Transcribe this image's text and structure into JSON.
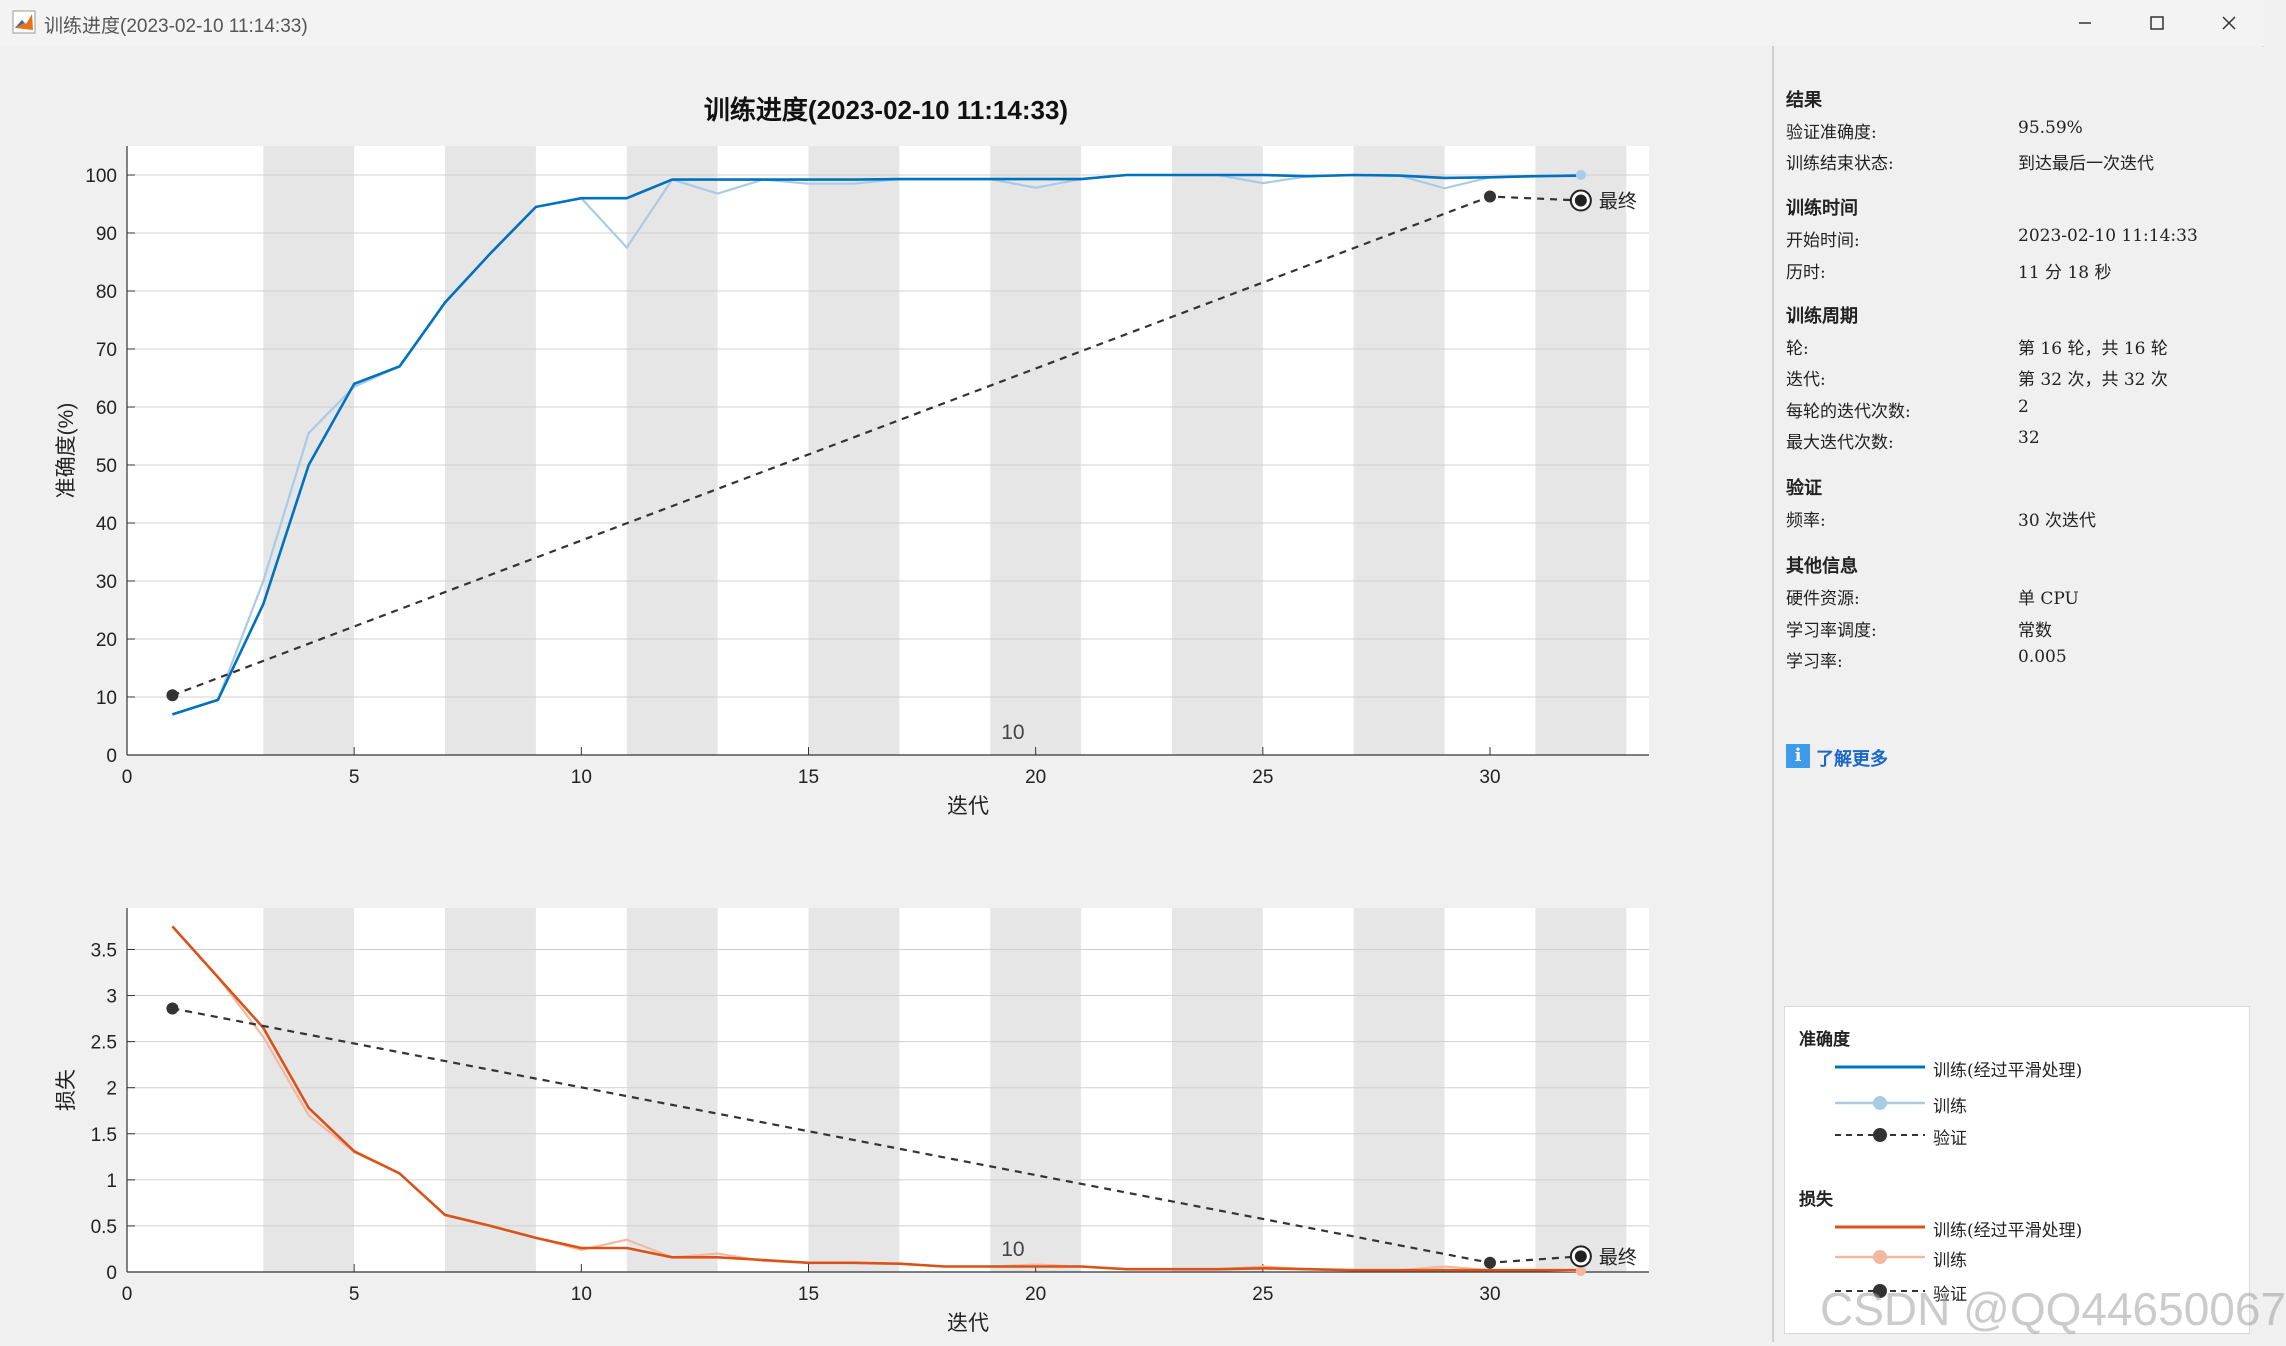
{
  "window": {
    "title": "训练进度(2023-02-10 11:14:33)",
    "controls": {
      "minimize": "minimize-icon",
      "maximize": "maximize-icon",
      "close": "close-icon"
    }
  },
  "figure": {
    "title": "训练进度(2023-02-10 11:14:33)"
  },
  "chart_data": [
    {
      "type": "line",
      "ylabel": "准确度(%)",
      "xlabel": "迭代",
      "xlim": [
        0,
        33.5
      ],
      "ylim": [
        0,
        105
      ],
      "xticks": [
        0,
        5,
        10,
        15,
        20,
        25,
        30
      ],
      "yticks": [
        0,
        10,
        20,
        30,
        40,
        50,
        60,
        70,
        80,
        90,
        100
      ],
      "epoch_marker_label": "10",
      "final_label": "最终",
      "epoch_shading": "alternating gray bands, 2 iterations per epoch",
      "series": [
        {
          "name": "训练(经过平滑处理)",
          "color": "#0072bd",
          "x": [
            1,
            2,
            3,
            4,
            5,
            6,
            7,
            8,
            9,
            10,
            11,
            12,
            13,
            14,
            15,
            16,
            17,
            18,
            19,
            20,
            21,
            22,
            23,
            24,
            25,
            26,
            27,
            28,
            29,
            30,
            31,
            32
          ],
          "values": [
            7,
            9.5,
            26,
            50,
            64,
            67,
            78,
            86.5,
            94.5,
            96,
            96,
            99.2,
            99.2,
            99.2,
            99.2,
            99.2,
            99.3,
            99.3,
            99.3,
            99.3,
            99.3,
            100,
            100,
            100,
            100,
            99.8,
            100,
            99.9,
            99.5,
            99.6,
            99.8,
            99.9
          ]
        },
        {
          "name": "训练",
          "color": "#a9cbe6",
          "x": [
            1,
            2,
            3,
            4,
            5,
            6,
            7,
            8,
            9,
            10,
            11,
            12,
            13,
            14,
            15,
            16,
            17,
            18,
            19,
            20,
            21,
            22,
            23,
            24,
            25,
            26,
            27,
            28,
            29,
            30,
            31,
            32
          ],
          "values": [
            7,
            9.5,
            30,
            55.5,
            63.5,
            67,
            78,
            86.5,
            94.5,
            96,
            87.5,
            99.2,
            96.8,
            99.2,
            98.5,
            98.5,
            99.3,
            99.3,
            99.3,
            97.8,
            99.3,
            100,
            100,
            100,
            98.6,
            99.8,
            100,
            99.9,
            97.7,
            99.6,
            99.8,
            100
          ]
        },
        {
          "name": "验证",
          "color": "#333333",
          "x": [
            1,
            30,
            32
          ],
          "values": [
            10.3,
            96.3,
            95.6
          ]
        }
      ]
    },
    {
      "type": "line",
      "ylabel": "损失",
      "xlabel": "迭代",
      "xlim": [
        0,
        33.5
      ],
      "ylim": [
        0,
        3.95
      ],
      "xticks": [
        0,
        5,
        10,
        15,
        20,
        25,
        30
      ],
      "yticks": [
        0,
        0.5,
        1,
        1.5,
        2,
        2.5,
        3,
        3.5
      ],
      "ytick_labels": [
        "0",
        "0.5",
        "1",
        "1.5",
        "2",
        "2.5",
        "3",
        "3.5"
      ],
      "epoch_marker_label": "10",
      "final_label": "最终",
      "series": [
        {
          "name": "训练(经过平滑处理)",
          "color": "#d95319",
          "x": [
            1,
            2,
            3,
            4,
            5,
            6,
            7,
            8,
            9,
            10,
            11,
            12,
            13,
            14,
            15,
            16,
            17,
            18,
            19,
            20,
            21,
            22,
            23,
            24,
            25,
            26,
            27,
            28,
            29,
            30,
            31,
            32
          ],
          "values": [
            3.75,
            3.2,
            2.65,
            1.78,
            1.31,
            1.07,
            0.62,
            0.5,
            0.37,
            0.26,
            0.26,
            0.16,
            0.16,
            0.13,
            0.1,
            0.1,
            0.09,
            0.06,
            0.06,
            0.06,
            0.06,
            0.03,
            0.03,
            0.03,
            0.04,
            0.03,
            0.02,
            0.02,
            0.02,
            0.02,
            0.02,
            0.02
          ]
        },
        {
          "name": "训练",
          "color": "#f4b8a0",
          "x": [
            1,
            2,
            3,
            4,
            5,
            6,
            7,
            8,
            9,
            10,
            11,
            12,
            13,
            14,
            15,
            16,
            17,
            18,
            19,
            20,
            21,
            22,
            23,
            24,
            25,
            26,
            27,
            28,
            29,
            30,
            31,
            32
          ],
          "values": [
            3.75,
            3.2,
            2.55,
            1.7,
            1.3,
            1.07,
            0.62,
            0.5,
            0.37,
            0.24,
            0.35,
            0.16,
            0.2,
            0.12,
            0.1,
            0.1,
            0.09,
            0.06,
            0.06,
            0.08,
            0.06,
            0.03,
            0.03,
            0.03,
            0.06,
            0.03,
            0.02,
            0.02,
            0.06,
            0.02,
            0.02,
            0.01
          ]
        },
        {
          "name": "验证",
          "color": "#333333",
          "x": [
            1,
            30,
            32
          ],
          "values": [
            2.86,
            0.1,
            0.17
          ]
        }
      ]
    }
  ],
  "panel": {
    "results": {
      "title": "结果",
      "rows": [
        {
          "label": "验证准确度:",
          "value": "95.59%"
        },
        {
          "label": "训练结束状态:",
          "value": "到达最后一次迭代"
        }
      ]
    },
    "time": {
      "title": "训练时间",
      "rows": [
        {
          "label": "开始时间:",
          "value": "2023-02-10 11:14:33"
        },
        {
          "label": "历时:",
          "value": "11 分 18 秒"
        }
      ]
    },
    "cycle": {
      "title": "训练周期",
      "rows": [
        {
          "label": "轮:",
          "value": "第 16 轮，共 16 轮"
        },
        {
          "label": "迭代:",
          "value": "第 32 次，共 32 次"
        },
        {
          "label": "每轮的迭代次数:",
          "value": "2"
        },
        {
          "label": "最大迭代次数:",
          "value": "32"
        }
      ]
    },
    "validation": {
      "title": "验证",
      "rows": [
        {
          "label": "频率:",
          "value": "30 次迭代"
        }
      ]
    },
    "other": {
      "title": "其他信息",
      "rows": [
        {
          "label": "硬件资源:",
          "value": "单 CPU"
        },
        {
          "label": "学习率调度:",
          "value": "常数"
        },
        {
          "label": "学习率:",
          "value": "0.005"
        }
      ]
    },
    "learn_more": {
      "label": "了解更多",
      "icon": "info-icon"
    }
  },
  "legend": {
    "accuracy": {
      "title": "准确度",
      "items": [
        {
          "label": "训练(经过平滑处理)",
          "color": "#0072bd",
          "style": "line"
        },
        {
          "label": "训练",
          "color": "#a9cbe6",
          "style": "line-dot"
        },
        {
          "label": "验证",
          "color": "#333333",
          "style": "dash-dot"
        }
      ]
    },
    "loss": {
      "title": "损失",
      "items": [
        {
          "label": "训练(经过平滑处理)",
          "color": "#d95319",
          "style": "line"
        },
        {
          "label": "训练",
          "color": "#f4b8a0",
          "style": "line-dot"
        },
        {
          "label": "验证",
          "color": "#333333",
          "style": "dash-dot"
        }
      ]
    }
  },
  "watermark": "CSDN @QQ44650067"
}
